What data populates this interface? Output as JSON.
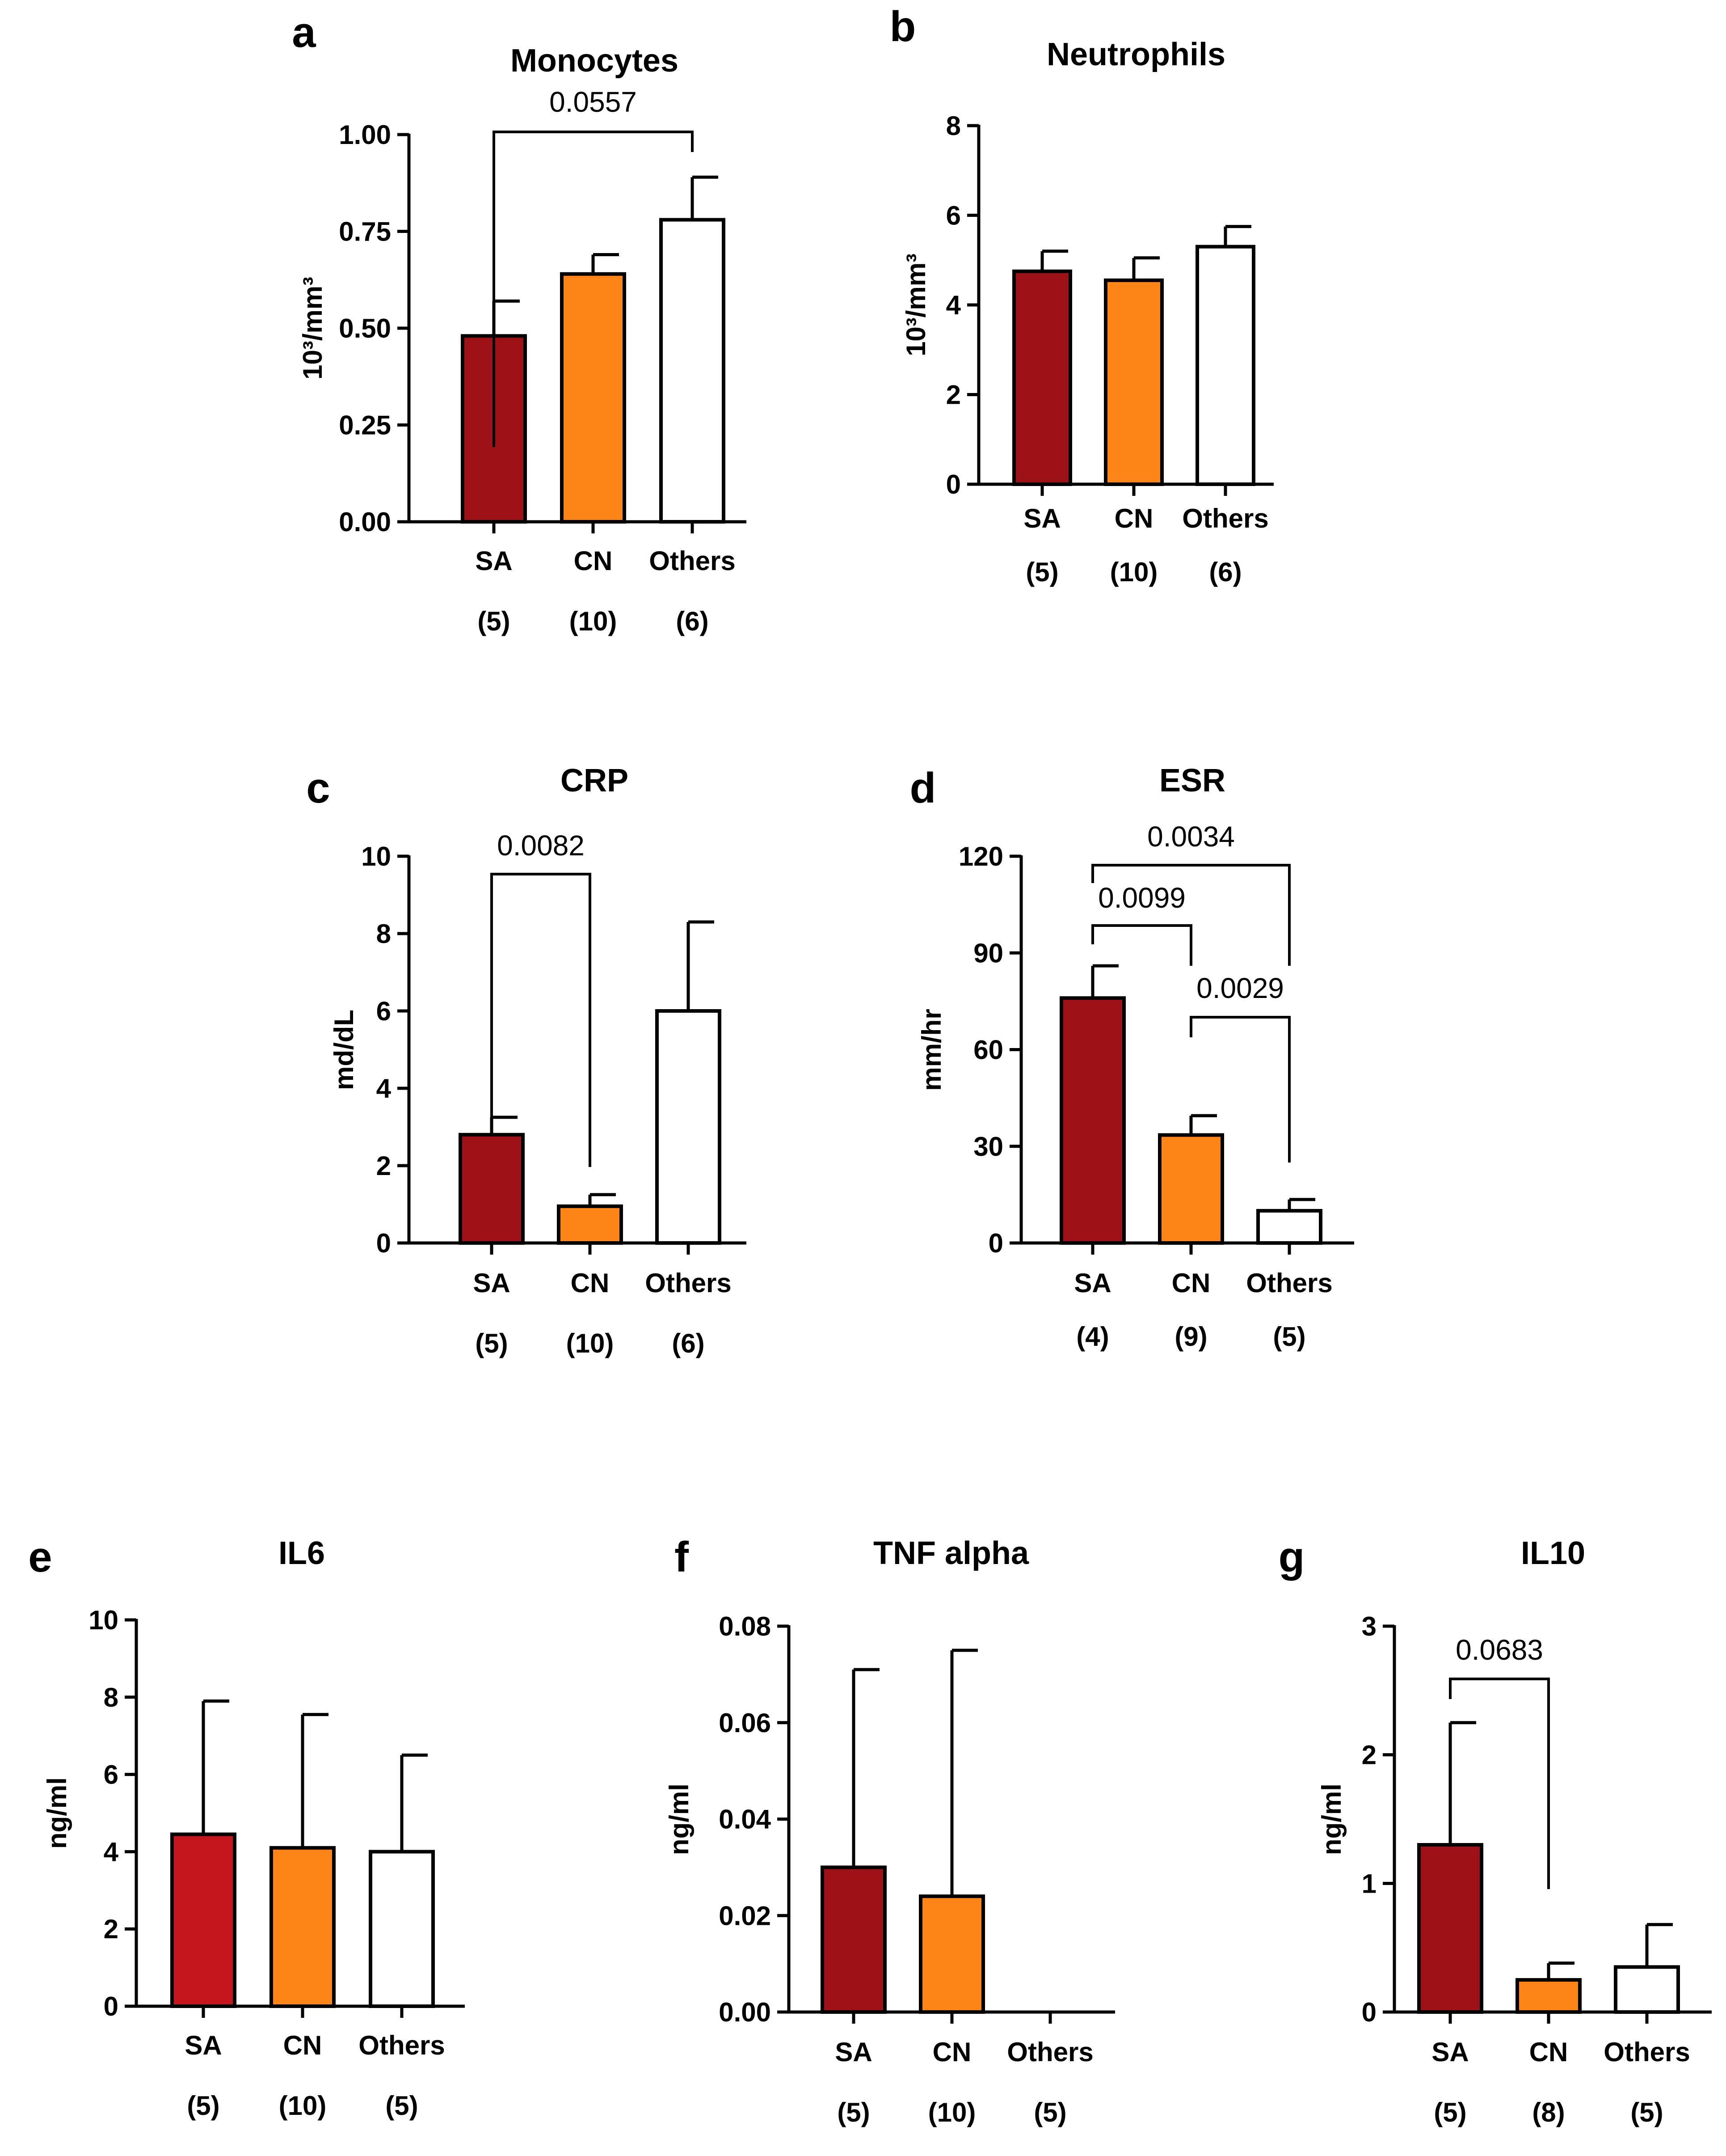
{
  "chart_data": [
    {
      "panel": "a",
      "type": "bar",
      "title": "Monocytes",
      "ylabel": "10³/mm³",
      "ylim": [
        0,
        1
      ],
      "yticks": [
        "0.00",
        "0.25",
        "0.50",
        "0.75",
        "1.00"
      ],
      "categories": [
        "SA",
        "CN",
        "Others"
      ],
      "n": [
        "(5)",
        "(10)",
        "(6)"
      ],
      "values": [
        0.48,
        0.64,
        0.78
      ],
      "errors": [
        0.09,
        0.05,
        0.11
      ],
      "colors": [
        "#9e1117",
        "#fd8416",
        "#ffffff"
      ],
      "comparisons": [
        {
          "from": 0,
          "to": 2,
          "label": "0.0557"
        }
      ]
    },
    {
      "panel": "b",
      "type": "bar",
      "title": "Neutrophils",
      "ylabel": "10³/mm³",
      "ylim": [
        0,
        8
      ],
      "yticks": [
        "0",
        "2",
        "4",
        "6",
        "8"
      ],
      "categories": [
        "SA",
        "CN",
        "Others"
      ],
      "n": [
        "(5)",
        "(10)",
        "(6)"
      ],
      "values": [
        4.75,
        4.55,
        5.3
      ],
      "errors": [
        0.45,
        0.5,
        0.45
      ],
      "colors": [
        "#9e1117",
        "#fd8416",
        "#ffffff"
      ],
      "comparisons": []
    },
    {
      "panel": "c",
      "type": "bar",
      "title": "CRP",
      "ylabel": "md/dL",
      "ylim": [
        0,
        10
      ],
      "yticks": [
        "0",
        "2",
        "4",
        "6",
        "8",
        "10"
      ],
      "categories": [
        "SA",
        "CN",
        "Others"
      ],
      "n": [
        "(5)",
        "(10)",
        "(6)"
      ],
      "values": [
        2.8,
        0.95,
        6.0
      ],
      "errors": [
        0.45,
        0.3,
        2.3
      ],
      "colors": [
        "#9e1117",
        "#fd8416",
        "#ffffff"
      ],
      "comparisons": [
        {
          "from": 0,
          "to": 1,
          "label": "0.0082"
        }
      ]
    },
    {
      "panel": "d",
      "type": "bar",
      "title": "ESR",
      "ylabel": "mm/hr",
      "ylim": [
        0,
        120
      ],
      "yticks": [
        "0",
        "30",
        "60",
        "90",
        "120"
      ],
      "categories": [
        "SA",
        "CN",
        "Others"
      ],
      "n": [
        "(4)",
        "(9)",
        "(5)"
      ],
      "values": [
        76,
        33.5,
        10
      ],
      "errors": [
        10,
        6,
        3.5
      ],
      "colors": [
        "#9e1117",
        "#fd8416",
        "#ffffff"
      ],
      "comparisons": [
        {
          "from": 0,
          "to": 2,
          "label": "0.0034"
        },
        {
          "from": 0,
          "to": 1,
          "label": "0.0099"
        },
        {
          "from": 1,
          "to": 2,
          "label": "0.0029"
        }
      ]
    },
    {
      "panel": "e",
      "type": "bar",
      "title": "IL6",
      "ylabel": "ng/ml",
      "ylim": [
        0,
        10
      ],
      "yticks": [
        "0",
        "2",
        "4",
        "6",
        "8",
        "10"
      ],
      "categories": [
        "SA",
        "CN",
        "Others"
      ],
      "n": [
        "(5)",
        "(10)",
        "(5)"
      ],
      "values": [
        4.45,
        4.1,
        4.0
      ],
      "errors": [
        3.45,
        3.45,
        2.5
      ],
      "colors": [
        "#c4161c",
        "#fd8416",
        "#ffffff"
      ],
      "comparisons": []
    },
    {
      "panel": "f",
      "type": "bar",
      "title": "TNF alpha",
      "ylabel": "ng/ml",
      "ylim": [
        0,
        0.08
      ],
      "yticks": [
        "0.00",
        "0.02",
        "0.04",
        "0.06",
        "0.08"
      ],
      "categories": [
        "SA",
        "CN",
        "Others"
      ],
      "n": [
        "(5)",
        "(10)",
        "(5)"
      ],
      "values": [
        0.03,
        0.024,
        0
      ],
      "errors": [
        0.041,
        0.051,
        0
      ],
      "colors": [
        "#9e1117",
        "#fd8416",
        "#ffffff"
      ],
      "comparisons": []
    },
    {
      "panel": "g",
      "type": "bar",
      "title": "IL10",
      "ylabel": "ng/ml",
      "ylim": [
        0,
        3
      ],
      "yticks": [
        "0",
        "1",
        "2",
        "3"
      ],
      "categories": [
        "SA",
        "CN",
        "Others"
      ],
      "n": [
        "(5)",
        "(8)",
        "(5)"
      ],
      "values": [
        1.3,
        0.25,
        0.35
      ],
      "errors": [
        0.95,
        0.13,
        0.33
      ],
      "colors": [
        "#9e1117",
        "#fd8416",
        "#ffffff"
      ],
      "comparisons": [
        {
          "from": 0,
          "to": 1,
          "label": "0.0683"
        }
      ]
    }
  ]
}
